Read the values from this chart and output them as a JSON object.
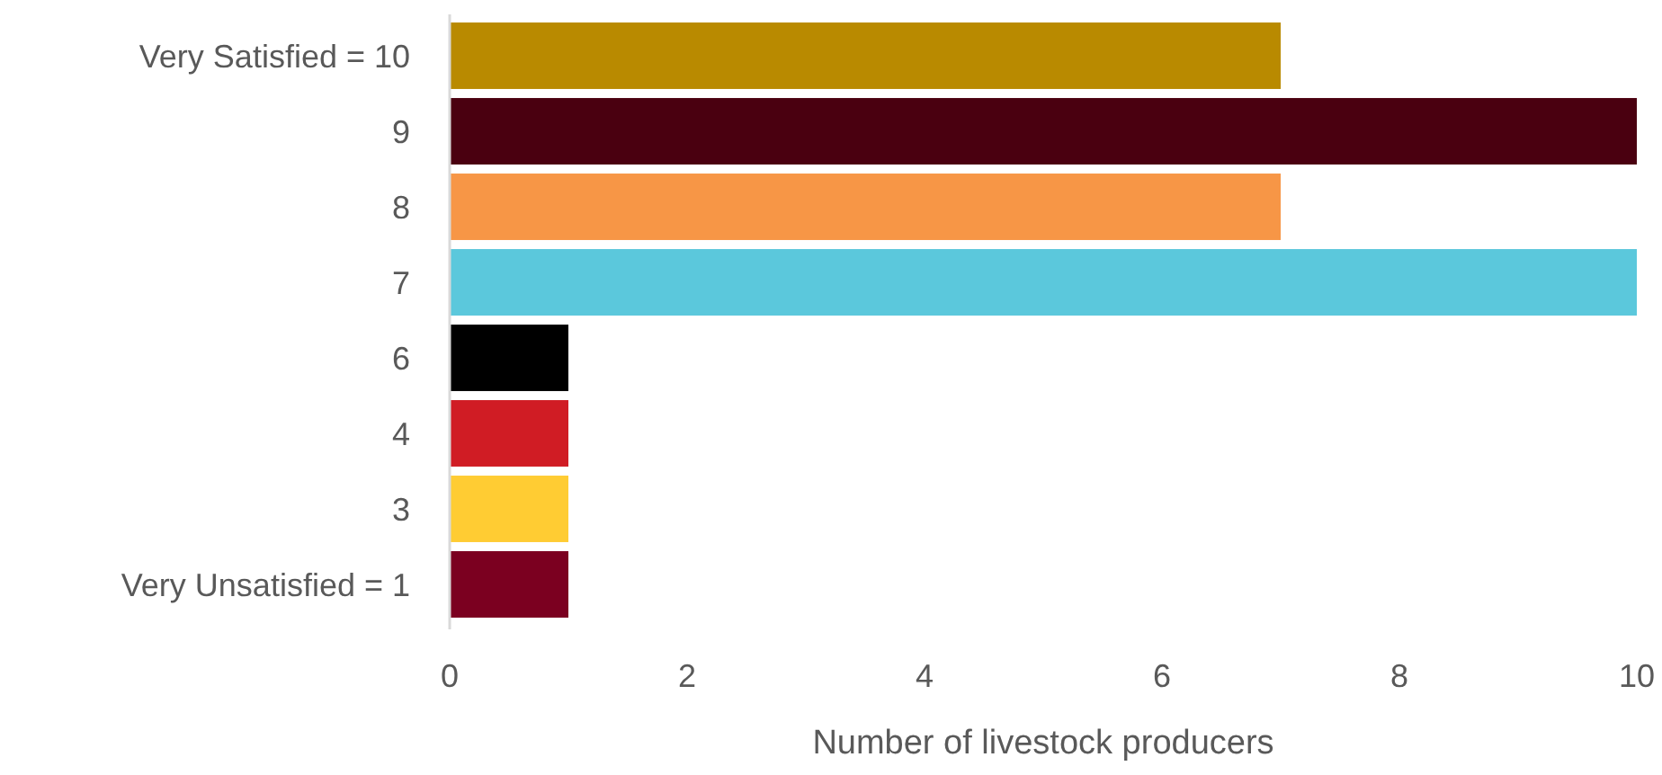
{
  "chart_data": {
    "type": "bar",
    "orientation": "horizontal",
    "xlabel": "Number of livestock producers",
    "categories": [
      "Very Satisfied = 10",
      "9",
      "8",
      "7",
      "6",
      "4",
      "3",
      "Very Unsatisfied = 1"
    ],
    "values": [
      7,
      10,
      7,
      10,
      1,
      1,
      1,
      1
    ],
    "colors": [
      "#b98a00",
      "#4a0010",
      "#f79646",
      "#5bc8dc",
      "#000000",
      "#d01c24",
      "#ffcc33",
      "#7b0020"
    ],
    "xlim": [
      0,
      10
    ],
    "xticks": [
      0,
      2,
      4,
      6,
      8,
      10
    ],
    "grid": false
  }
}
